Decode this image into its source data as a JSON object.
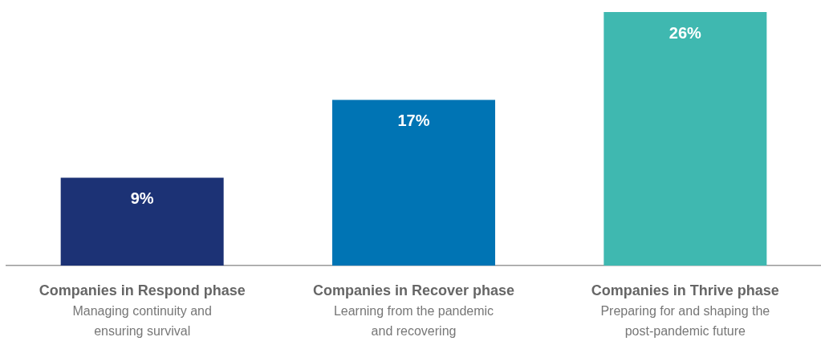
{
  "chart_data": {
    "type": "bar",
    "categories": [
      "Companies in Respond phase\nManaging continuity and\nensuring survival",
      "Companies in Recover phase\nLearning from the pandemic\nand recovering",
      "Companies in Thrive phase\nPreparing for and shaping the\npost-pandemic future"
    ],
    "values": [
      9,
      17,
      26
    ],
    "value_labels": [
      "9%",
      "17%",
      "26%"
    ],
    "colors": [
      "#1c3275",
      "#0074b4",
      "#3fb8b0"
    ],
    "grid": false,
    "legend": false,
    "tick_labels": "x"
  }
}
